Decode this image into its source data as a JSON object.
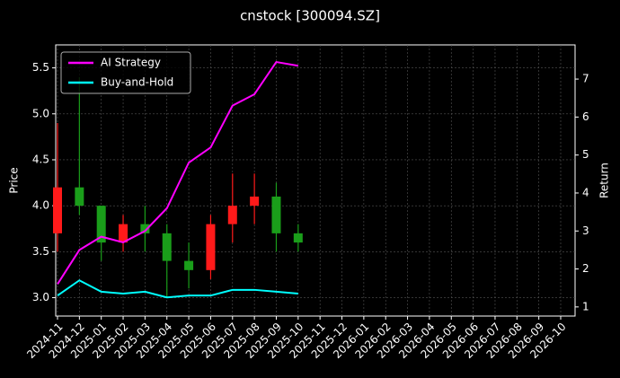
{
  "chart_data": {
    "type": "candlestick",
    "title": "cnstock [300094.SZ]",
    "ylabel": "Price",
    "y2label": "Return",
    "x": [
      "2024-11",
      "2024-12",
      "2025-01",
      "2025-02",
      "2025-03",
      "2025-04",
      "2025-05",
      "2025-06",
      "2025-07",
      "2025-08",
      "2025-09",
      "2025-10"
    ],
    "open": [
      3.7,
      4.2,
      4.0,
      3.6,
      3.8,
      3.7,
      3.4,
      3.3,
      3.8,
      4.0,
      4.1,
      3.7
    ],
    "high": [
      4.9,
      5.4,
      4.0,
      3.9,
      4.0,
      3.8,
      3.6,
      3.9,
      4.35,
      4.35,
      4.25,
      3.8
    ],
    "low": [
      3.5,
      3.9,
      3.4,
      3.5,
      3.5,
      3.0,
      3.1,
      3.2,
      3.6,
      3.8,
      3.5,
      3.5
    ],
    "close": [
      4.2,
      4.0,
      3.6,
      3.8,
      3.7,
      3.4,
      3.3,
      3.8,
      4.0,
      4.1,
      3.7,
      3.6
    ],
    "up_color": "#ff1a1a",
    "down_color": "#1a9e1a",
    "series": [
      {
        "name": "AI Strategy",
        "color": "#ff00ff",
        "axis": "y2",
        "values": [
          1.6,
          2.5,
          2.85,
          2.7,
          3.0,
          3.6,
          4.8,
          5.2,
          6.3,
          6.6,
          7.45,
          7.35
        ]
      },
      {
        "name": "Buy-and-Hold",
        "color": "#00ffff",
        "axis": "y2",
        "values": [
          1.3,
          1.7,
          1.4,
          1.35,
          1.4,
          1.25,
          1.3,
          1.3,
          1.45,
          1.45,
          1.4,
          1.35
        ]
      }
    ],
    "xlim": [
      "2024-11",
      "2026-10"
    ],
    "xticks": [
      "2024-11",
      "2024-12",
      "2025-01",
      "2025-02",
      "2025-03",
      "2025-04",
      "2025-05",
      "2025-06",
      "2025-07",
      "2025-08",
      "2025-09",
      "2025-10",
      "2025-11",
      "2025-12",
      "2026-01",
      "2026-02",
      "2026-03",
      "2026-04",
      "2026-05",
      "2026-06",
      "2026-07",
      "2026-08",
      "2026-09",
      "2026-10"
    ],
    "ylim": [
      2.8,
      5.75
    ],
    "yticks": [
      {
        "value": 3,
        "label": "3.0"
      },
      3.5,
      {
        "value": 4,
        "label": "4.0"
      },
      4.5,
      {
        "value": 5,
        "label": "5.0"
      },
      5.5
    ],
    "y2lim": [
      0.76,
      7.9
    ],
    "y2ticks": [
      1,
      2,
      3,
      4,
      5,
      6,
      7
    ],
    "grid": true,
    "legend": "upper left"
  }
}
